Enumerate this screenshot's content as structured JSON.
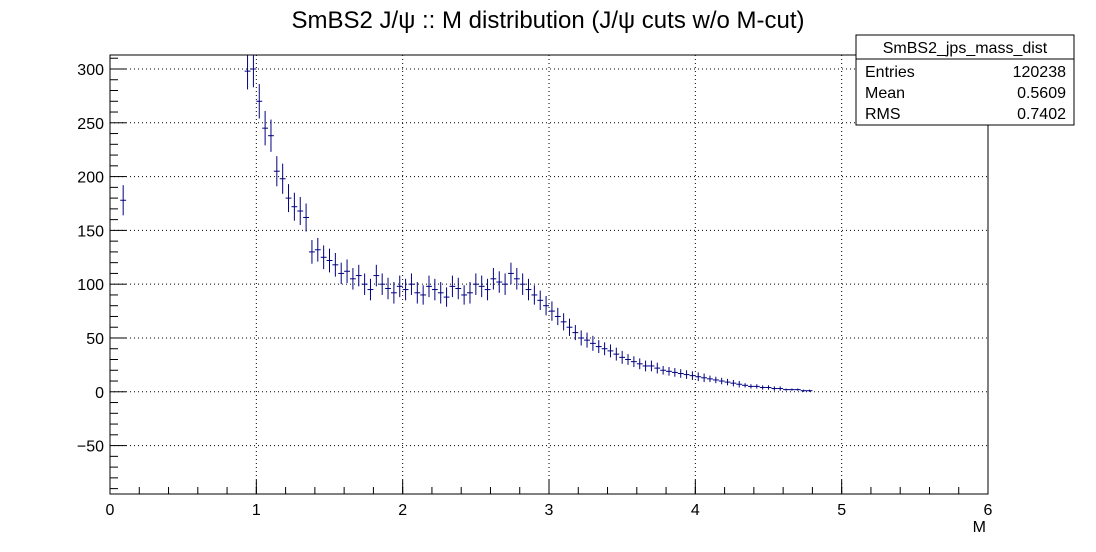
{
  "chart_data": {
    "type": "scatter",
    "title": "SmBS2 J/ψ :: M distribution (J/ψ cuts w/o M-cut)",
    "xlabel": "M",
    "ylabel": "",
    "xlim": [
      0,
      6
    ],
    "ylim": [
      -95,
      313
    ],
    "grid": true,
    "x_ticks": [
      "0",
      "1",
      "2",
      "3",
      "4",
      "5",
      "6"
    ],
    "y_ticks": [
      "−50",
      "0",
      "50",
      "100",
      "150",
      "200",
      "250",
      "300"
    ],
    "y_tick_values": [
      -50,
      0,
      50,
      100,
      150,
      200,
      250,
      300
    ],
    "x_tick_values": [
      0,
      1,
      2,
      3,
      4,
      5,
      6
    ],
    "marker_color": "#000080",
    "stats_box": {
      "name": "SmBS2_jps_mass_dist",
      "rows": [
        {
          "label": "Entries",
          "value": "120238"
        },
        {
          "label": "Mean",
          "value": "0.5609"
        },
        {
          "label": "RMS",
          "value": "0.7402"
        }
      ]
    },
    "series": [
      {
        "x": [
          0.09,
          0.94,
          0.98,
          1.02,
          1.06,
          1.1,
          1.14,
          1.18,
          1.22,
          1.26,
          1.3,
          1.34,
          1.38,
          1.42,
          1.46,
          1.5,
          1.54,
          1.58,
          1.62,
          1.66,
          1.7,
          1.74,
          1.78,
          1.82,
          1.86,
          1.9,
          1.94,
          1.98,
          2.02,
          2.06,
          2.1,
          2.14,
          2.18,
          2.22,
          2.26,
          2.3,
          2.34,
          2.38,
          2.42,
          2.46,
          2.5,
          2.54,
          2.58,
          2.62,
          2.66,
          2.7,
          2.74,
          2.78,
          2.82,
          2.86,
          2.9,
          2.94,
          2.98,
          3.02,
          3.06,
          3.1,
          3.14,
          3.18,
          3.22,
          3.26,
          3.3,
          3.34,
          3.38,
          3.42,
          3.46,
          3.5,
          3.54,
          3.58,
          3.62,
          3.66,
          3.7,
          3.74,
          3.78,
          3.82,
          3.86,
          3.9,
          3.94,
          3.98,
          4.02,
          4.06,
          4.1,
          4.14,
          4.18,
          4.22,
          4.26,
          4.3,
          4.34,
          4.38,
          4.42,
          4.46,
          4.5,
          4.54,
          4.58,
          4.62,
          4.66,
          4.7,
          4.74,
          4.78
        ],
        "y": [
          178,
          298,
          300,
          270,
          245,
          238,
          205,
          198,
          180,
          172,
          168,
          162,
          130,
          132,
          125,
          122,
          118,
          110,
          112,
          105,
          108,
          100,
          95,
          108,
          100,
          96,
          92,
          98,
          95,
          100,
          92,
          90,
          98,
          95,
          92,
          88,
          98,
          96,
          90,
          92,
          100,
          98,
          95,
          105,
          102,
          100,
          110,
          105,
          100,
          95,
          90,
          85,
          80,
          75,
          70,
          65,
          60,
          55,
          50,
          48,
          45,
          42,
          40,
          38,
          35,
          32,
          30,
          28,
          26,
          24,
          24,
          22,
          20,
          19,
          18,
          17,
          16,
          15,
          14,
          13,
          12,
          11,
          10,
          9,
          8,
          7,
          6,
          5,
          5,
          4,
          4,
          3,
          3,
          2,
          2,
          2,
          1,
          1
        ],
        "yerr": [
          14,
          17,
          17,
          16,
          16,
          15,
          14,
          14,
          13,
          13,
          13,
          13,
          11,
          11,
          11,
          11,
          11,
          10,
          11,
          10,
          10,
          10,
          10,
          10,
          10,
          10,
          10,
          10,
          10,
          10,
          10,
          9,
          10,
          10,
          10,
          9,
          10,
          10,
          9,
          10,
          10,
          10,
          10,
          10,
          10,
          10,
          10,
          10,
          10,
          10,
          9,
          9,
          9,
          9,
          8,
          8,
          8,
          7,
          7,
          7,
          7,
          6,
          6,
          6,
          6,
          6,
          5,
          5,
          5,
          5,
          5,
          5,
          4,
          4,
          4,
          4,
          4,
          4,
          4,
          4,
          3,
          3,
          3,
          3,
          3,
          3,
          2,
          2,
          2,
          2,
          2,
          2,
          2,
          1,
          1,
          1,
          1,
          1
        ]
      }
    ]
  }
}
